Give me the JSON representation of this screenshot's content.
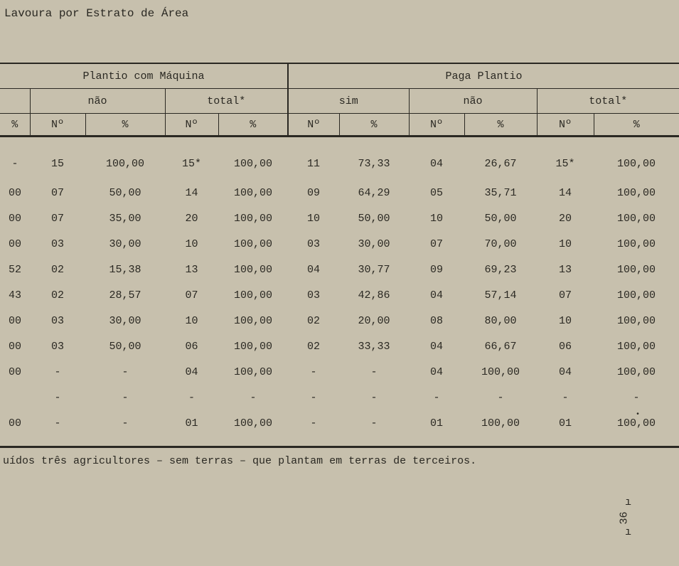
{
  "title": "Lavoura por Estrato de Área",
  "table": {
    "group_left": "Plantio com Máquina",
    "group_right": "Paga Plantio",
    "sub_headers": {
      "pct0": "%",
      "nao1": "não",
      "tot1": "total*",
      "sim2": "sim",
      "nao2": "não",
      "tot2": "total*"
    },
    "col_headers": {
      "pct": "%",
      "no": "Nº"
    },
    "rows": [
      {
        "c0": "-",
        "c1": "15",
        "c2": "100,00",
        "c3": "15*",
        "c4": "100,00",
        "c5": "11",
        "c6": "73,33",
        "c7": "04",
        "c8": "26,67",
        "c9": "15*",
        "c10": "100,00"
      },
      {
        "c0": "00",
        "c1": "07",
        "c2": "50,00",
        "c3": "14",
        "c4": "100,00",
        "c5": "09",
        "c6": "64,29",
        "c7": "05",
        "c8": "35,71",
        "c9": "14",
        "c10": "100,00"
      },
      {
        "c0": "00",
        "c1": "07",
        "c2": "35,00",
        "c3": "20",
        "c4": "100,00",
        "c5": "10",
        "c6": "50,00",
        "c7": "10",
        "c8": "50,00",
        "c9": "20",
        "c10": "100,00"
      },
      {
        "c0": "00",
        "c1": "03",
        "c2": "30,00",
        "c3": "10",
        "c4": "100,00",
        "c5": "03",
        "c6": "30,00",
        "c7": "07",
        "c8": "70,00",
        "c9": "10",
        "c10": "100,00"
      },
      {
        "c0": "52",
        "c1": "02",
        "c2": "15,38",
        "c3": "13",
        "c4": "100,00",
        "c5": "04",
        "c6": "30,77",
        "c7": "09",
        "c8": "69,23",
        "c9": "13",
        "c10": "100,00"
      },
      {
        "c0": "43",
        "c1": "02",
        "c2": "28,57",
        "c3": "07",
        "c4": "100,00",
        "c5": "03",
        "c6": "42,86",
        "c7": "04",
        "c8": "57,14",
        "c9": "07",
        "c10": "100,00"
      },
      {
        "c0": "00",
        "c1": "03",
        "c2": "30,00",
        "c3": "10",
        "c4": "100,00",
        "c5": "02",
        "c6": "20,00",
        "c7": "08",
        "c8": "80,00",
        "c9": "10",
        "c10": "100,00"
      },
      {
        "c0": "00",
        "c1": "03",
        "c2": "50,00",
        "c3": "06",
        "c4": "100,00",
        "c5": "02",
        "c6": "33,33",
        "c7": "04",
        "c8": "66,67",
        "c9": "06",
        "c10": "100,00"
      },
      {
        "c0": "00",
        "c1": "-",
        "c2": "-",
        "c3": "04",
        "c4": "100,00",
        "c5": "-",
        "c6": "-",
        "c7": "04",
        "c8": "100,00",
        "c9": "04",
        "c10": "100,00"
      },
      {
        "c0": "",
        "c1": "-",
        "c2": "-",
        "c3": "-",
        "c4": "-",
        "c5": "-",
        "c6": "-",
        "c7": "-",
        "c8": "-",
        "c9": "-",
        "c10": "-"
      },
      {
        "c0": "00",
        "c1": "-",
        "c2": "-",
        "c3": "01",
        "c4": "100,00",
        "c5": "-",
        "c6": "-",
        "c7": "01",
        "c8": "100,00",
        "c9": "01",
        "c10": "100,00"
      }
    ]
  },
  "footnote": "uídos três agricultores – sem terras – que plantam em terras de terceiros.",
  "page_code": "36"
}
